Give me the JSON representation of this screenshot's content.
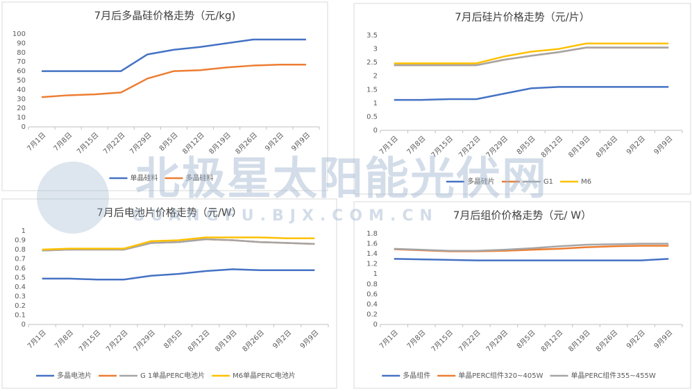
{
  "chart_data": [
    {
      "type": "line",
      "title": "7月后多晶硅价格走势（元/kg)",
      "categories": [
        "7月1日",
        "7月8日",
        "7月15日",
        "7月22日",
        "7月29日",
        "8月5日",
        "8月12日",
        "8月19日",
        "8月26日",
        "9月2日",
        "9月9日"
      ],
      "series": [
        {
          "name": "单晶硅料",
          "color": "#4472c4",
          "values": [
            60,
            60,
            60,
            60,
            78,
            83,
            86,
            90,
            94,
            94,
            94
          ]
        },
        {
          "name": "多晶硅料",
          "color": "#ed7d31",
          "values": [
            32,
            34,
            35,
            37,
            52,
            60,
            61,
            64,
            66,
            67,
            67
          ]
        }
      ],
      "ylim": [
        0,
        100
      ],
      "yticks": [
        0,
        10,
        20,
        30,
        40,
        50,
        60,
        70,
        80,
        90,
        100
      ],
      "grid": false,
      "legend": "bottom"
    },
    {
      "type": "line",
      "title": "7月后硅片价格走势（元/片）",
      "categories": [
        "7月1日",
        "7月8日",
        "7月15日",
        "7月22日",
        "7月29日",
        "8月5日",
        "8月12日",
        "8月19日",
        "8月26日",
        "9月2日",
        "9月9日"
      ],
      "series": [
        {
          "name": "多晶硅片",
          "color": "#4472c4",
          "values": [
            1.12,
            1.12,
            1.15,
            1.15,
            1.35,
            1.55,
            1.6,
            1.6,
            1.6,
            1.6,
            1.6
          ]
        },
        {
          "color": "#ed7d31",
          "values": [
            2.4,
            2.4,
            2.4,
            2.4,
            2.6,
            2.75,
            2.88,
            3.05,
            3.05,
            3.05,
            3.05
          ]
        },
        {
          "name": "G1",
          "color": "#a5a5a5",
          "values": [
            2.4,
            2.4,
            2.4,
            2.4,
            2.6,
            2.75,
            2.88,
            3.05,
            3.05,
            3.05,
            3.05
          ]
        },
        {
          "name": "M6",
          "color": "#ffc000",
          "values": [
            2.47,
            2.47,
            2.47,
            2.47,
            2.72,
            2.9,
            3.0,
            3.2,
            3.2,
            3.2,
            3.2
          ]
        }
      ],
      "ylim": [
        0,
        3.5
      ],
      "yticks": [
        0,
        0.5,
        1,
        1.5,
        2,
        2.5,
        3,
        3.5
      ],
      "grid": false,
      "legend": "bottom"
    },
    {
      "type": "line",
      "title": "7月后电池片价格走势（元/W）",
      "categories": [
        "7月1日",
        "7月8日",
        "7月15日",
        "7月22日",
        "7月29日",
        "8月5日",
        "8月12日",
        "8月19日",
        "8月26日",
        "9月2日",
        "9月9日"
      ],
      "series": [
        {
          "name": "多晶电池片",
          "color": "#4472c4",
          "values": [
            0.49,
            0.49,
            0.48,
            0.48,
            0.52,
            0.54,
            0.57,
            0.59,
            0.58,
            0.58,
            0.58
          ]
        },
        {
          "color": "#ed7d31",
          "values": [
            0.79,
            0.8,
            0.8,
            0.8,
            0.87,
            0.88,
            0.91,
            0.9,
            0.88,
            0.87,
            0.86
          ]
        },
        {
          "name": "G 1单晶PERC电池片",
          "color": "#a5a5a5",
          "values": [
            0.79,
            0.8,
            0.8,
            0.8,
            0.87,
            0.88,
            0.91,
            0.9,
            0.88,
            0.87,
            0.86
          ]
        },
        {
          "name": "M6单晶PERC电池片",
          "color": "#ffc000",
          "values": [
            0.8,
            0.81,
            0.81,
            0.81,
            0.89,
            0.9,
            0.93,
            0.93,
            0.93,
            0.92,
            0.92
          ]
        }
      ],
      "ylim": [
        0,
        1
      ],
      "yticks": [
        0,
        0.1,
        0.2,
        0.3,
        0.4,
        0.5,
        0.6,
        0.7,
        0.8,
        0.9,
        1
      ],
      "grid": false,
      "legend": "bottom"
    },
    {
      "type": "line",
      "title": "7月后组价价格走势（元/ W）",
      "categories": [
        "7月1日",
        "7月8日",
        "7月15日",
        "7月22日",
        "7月29日",
        "8月5日",
        "8月12日",
        "8月19日",
        "8月26日",
        "9月2日",
        "9月9日"
      ],
      "series": [
        {
          "name": "多晶组件",
          "color": "#4472c4",
          "values": [
            1.3,
            1.29,
            1.28,
            1.27,
            1.27,
            1.27,
            1.27,
            1.27,
            1.27,
            1.27,
            1.3
          ]
        },
        {
          "name": "单晶PERC组件320~405W",
          "color": "#ed7d31",
          "values": [
            1.49,
            1.47,
            1.45,
            1.45,
            1.46,
            1.48,
            1.5,
            1.53,
            1.55,
            1.56,
            1.56
          ]
        },
        {
          "name": "单晶PERC组件355~455W",
          "color": "#a5a5a5",
          "values": [
            1.5,
            1.48,
            1.46,
            1.46,
            1.48,
            1.51,
            1.55,
            1.58,
            1.59,
            1.6,
            1.6
          ]
        }
      ],
      "ylim": [
        0,
        1.8
      ],
      "yticks": [
        0,
        0.2,
        0.4,
        0.6,
        0.8,
        1,
        1.2,
        1.4,
        1.6,
        1.8
      ],
      "grid": false,
      "legend": "bottom"
    }
  ],
  "watermark": {
    "text": "北极星太阳能光伏网",
    "url": "GUANGFU.BJX.COM.CN"
  }
}
